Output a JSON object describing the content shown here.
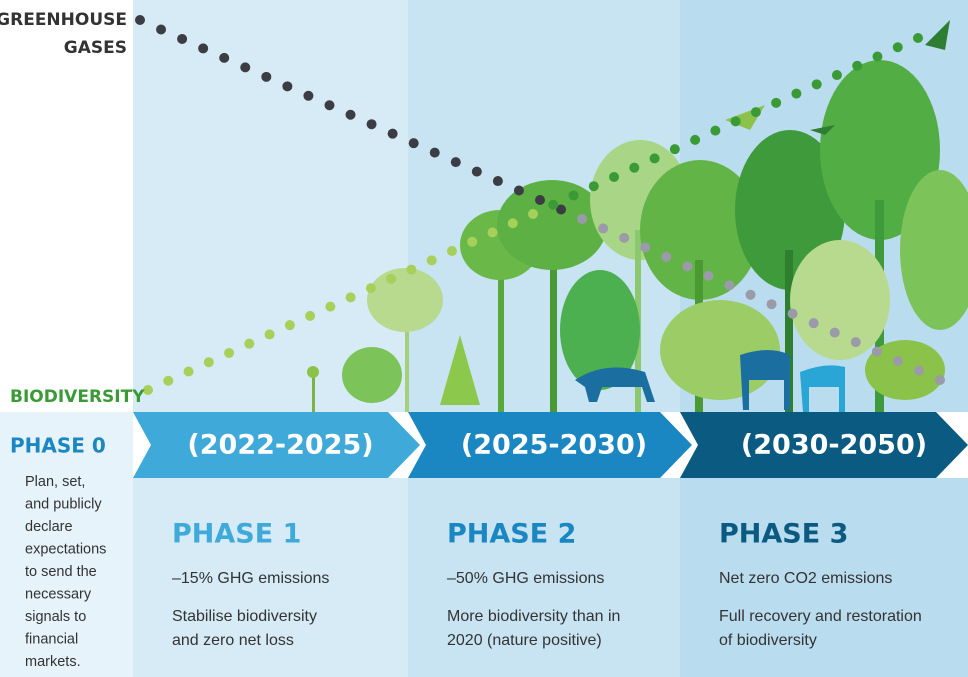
{
  "labels": {
    "greenhouse_gases": [
      "GREENHOUSE",
      "GASES"
    ],
    "biodiversity": "BIODIVERSITY"
  },
  "phase0": {
    "title": "PHASE 0",
    "lines": [
      "Plan, set,",
      "and publicly",
      "declare",
      "expectations",
      "to send the",
      "necessary",
      "signals to",
      "financial",
      "markets."
    ]
  },
  "phases": [
    {
      "period": "(2022-2025)",
      "title": "PHASE 1",
      "target": "–15% GHG emissions",
      "lines": [
        "Stabilise biodiversity",
        "and zero net loss"
      ]
    },
    {
      "period": "(2025-2030)",
      "title": "PHASE 2",
      "target": "–50% GHG emissions",
      "lines": [
        "More biodiversity than in",
        "2020 (nature positive)"
      ]
    },
    {
      "period": "(2030-2050)",
      "title": "PHASE 3",
      "target": "Net zero CO2 emissions",
      "lines": [
        "Full recovery and restoration",
        "of biodiversity"
      ]
    }
  ]
}
